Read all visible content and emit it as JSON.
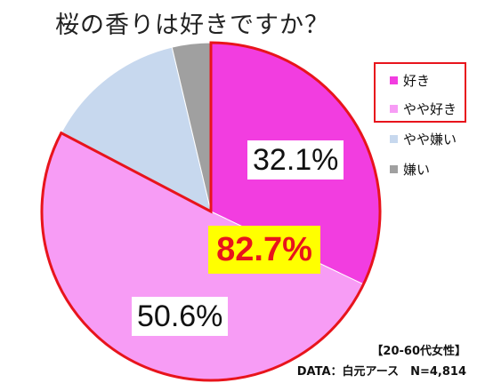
{
  "title": "桜の香りは好きですか？",
  "chart_data": {
    "type": "pie",
    "title": "桜の香りは好きですか？",
    "slices": [
      {
        "label": "好き",
        "value": 32.1,
        "color": "#f23de0",
        "display": "32.1%"
      },
      {
        "label": "やや好き",
        "value": 50.6,
        "color": "#f79cf5",
        "display": "50.6%"
      },
      {
        "label": "やや嫌い",
        "value": 13.6,
        "color": "#c7d8ee"
      },
      {
        "label": "嫌い",
        "value": 3.7,
        "color": "#a0a0a0"
      }
    ],
    "highlight_total": "82.7%",
    "highlight_outline_color": "#e8141c",
    "legend_position": "right"
  },
  "legend": [
    {
      "label": "好き",
      "color": "#f23de0"
    },
    {
      "label": "やや好き",
      "color": "#f79cf5"
    },
    {
      "label": "やや嫌い",
      "color": "#c7d8ee"
    },
    {
      "label": "嫌い",
      "color": "#a0a0a0"
    }
  ],
  "footnote": {
    "group": "【20-60代女性】",
    "source": "DATA：白元アース　N=4,814"
  }
}
